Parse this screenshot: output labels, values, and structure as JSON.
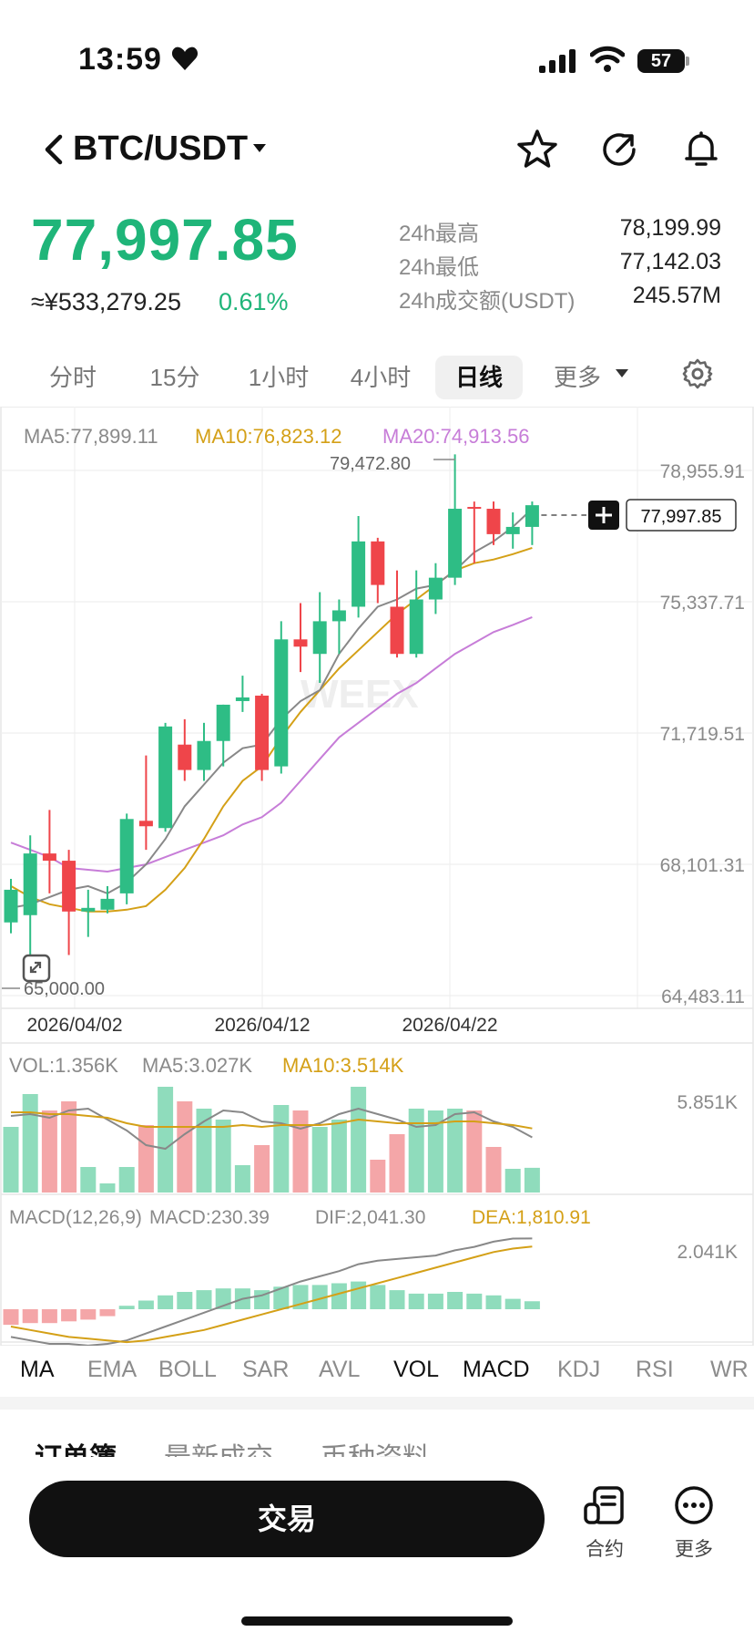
{
  "status_bar": {
    "time": "13:59",
    "battery": "57"
  },
  "header": {
    "pair": "BTC/USDT"
  },
  "price": {
    "last": "77,997.85",
    "cny": "≈¥533,279.25",
    "change": "0.61%",
    "stats": [
      {
        "label": "24h最高",
        "value": "78,199.99"
      },
      {
        "label": "24h最低",
        "value": "77,142.03"
      },
      {
        "label": "24h成交额(USDT)",
        "value": "245.57M"
      }
    ]
  },
  "timeframes": [
    "分时",
    "15分",
    "1小时",
    "4小时",
    "日线",
    "更多"
  ],
  "active_timeframe": "日线",
  "chart": {
    "ma5_label": "MA5:77,899.11",
    "ma10_label": "MA10:76,823.12",
    "ma20_label": "MA20:74,913.56",
    "high_marker": "79,472.80",
    "low_marker": "65,000.00",
    "last_tag": "77,997.85",
    "watermark": "WEEX",
    "vol_label": "VOL:1.356K",
    "vol_ma5_label": "MA5:3.027K",
    "vol_ma10_label": "MA10:3.514K",
    "vol_axis": "5.851K",
    "macd_params": "MACD(12,26,9)",
    "macd_label": "MACD:230.39",
    "dif_label": "DIF:2,041.30",
    "dea_label": "DEA:1,810.91",
    "macd_axis": "2.041K"
  },
  "chart_data": {
    "type": "candlestick",
    "x_labels": [
      "2026/04/02",
      "2026/04/12",
      "2026/04/22"
    ],
    "y_ticks": [
      "78,955.91",
      "75,337.71",
      "71,719.51",
      "68,101.31",
      "64,483.11"
    ],
    "ylim": [
      64483.11,
      78955.91
    ],
    "colors": {
      "up": "#2ebd85",
      "down": "#ef454a",
      "ma5": "#888888",
      "ma10": "#d4a017",
      "ma20": "#c77dd8"
    },
    "candles": [
      {
        "o": 66500,
        "h": 67700,
        "l": 66200,
        "c": 67400
      },
      {
        "o": 66700,
        "h": 68900,
        "l": 65600,
        "c": 68400
      },
      {
        "o": 68400,
        "h": 69600,
        "l": 67300,
        "c": 68200
      },
      {
        "o": 68200,
        "h": 68500,
        "l": 65600,
        "c": 66800
      },
      {
        "o": 66800,
        "h": 67400,
        "l": 66100,
        "c": 66900
      },
      {
        "o": 66850,
        "h": 67500,
        "l": 66750,
        "c": 67150
      },
      {
        "o": 67300,
        "h": 69500,
        "l": 67000,
        "c": 69350
      },
      {
        "o": 69300,
        "h": 71100,
        "l": 68500,
        "c": 69150
      },
      {
        "o": 69100,
        "h": 72000,
        "l": 69000,
        "c": 71900
      },
      {
        "o": 71400,
        "h": 72100,
        "l": 70400,
        "c": 70700
      },
      {
        "o": 70700,
        "h": 72000,
        "l": 70400,
        "c": 71500
      },
      {
        "o": 71500,
        "h": 72500,
        "l": 70800,
        "c": 72500
      },
      {
        "o": 72600,
        "h": 73300,
        "l": 72300,
        "c": 72700
      },
      {
        "o": 72750,
        "h": 72800,
        "l": 70400,
        "c": 70700
      },
      {
        "o": 70800,
        "h": 74800,
        "l": 70600,
        "c": 74300
      },
      {
        "o": 74300,
        "h": 75300,
        "l": 73400,
        "c": 74100
      },
      {
        "o": 73900,
        "h": 75600,
        "l": 73100,
        "c": 74800
      },
      {
        "o": 74800,
        "h": 75400,
        "l": 73900,
        "c": 75100
      },
      {
        "o": 75200,
        "h": 77700,
        "l": 74900,
        "c": 77000
      },
      {
        "o": 77000,
        "h": 77100,
        "l": 75300,
        "c": 75800
      },
      {
        "o": 75200,
        "h": 76200,
        "l": 73800,
        "c": 73900
      },
      {
        "o": 73900,
        "h": 76200,
        "l": 73800,
        "c": 75400
      },
      {
        "o": 75400,
        "h": 76400,
        "l": 75000,
        "c": 76000
      },
      {
        "o": 76000,
        "h": 79400,
        "l": 75800,
        "c": 77900
      },
      {
        "o": 77950,
        "h": 78100,
        "l": 76400,
        "c": 77900
      },
      {
        "o": 77900,
        "h": 78100,
        "l": 76900,
        "c": 77200
      },
      {
        "o": 77200,
        "h": 77800,
        "l": 76800,
        "c": 77400
      },
      {
        "o": 77400,
        "h": 78100,
        "l": 76900,
        "c": 77997.85
      }
    ],
    "ma5": [
      66900,
      67000,
      67200,
      67400,
      67500,
      67300,
      67600,
      68100,
      68800,
      69700,
      70300,
      70900,
      71300,
      71400,
      72100,
      72600,
      72900,
      73900,
      74600,
      75200,
      75400,
      75700,
      75800,
      76200,
      76700,
      77000,
      77400,
      77899.11
    ],
    "ma10": [
      67500,
      67200,
      67000,
      66900,
      66800,
      66800,
      66850,
      66950,
      67400,
      68000,
      68800,
      69700,
      70400,
      70800,
      71600,
      72300,
      72900,
      73500,
      74000,
      74500,
      75000,
      75400,
      75800,
      76200,
      76400,
      76500,
      76650,
      76823.12
    ],
    "ma20": [
      68700,
      68500,
      68300,
      68000,
      67950,
      67900,
      68000,
      68100,
      68300,
      68500,
      68700,
      68900,
      69200,
      69400,
      69800,
      70400,
      71000,
      71600,
      72000,
      72400,
      72800,
      73100,
      73500,
      73900,
      74200,
      74500,
      74700,
      74913.56
    ],
    "volume": [
      3.6,
      5.4,
      4.5,
      5.0,
      1.4,
      0.5,
      1.4,
      3.7,
      5.8,
      5.0,
      4.6,
      4.0,
      1.5,
      2.6,
      4.8,
      4.5,
      3.6,
      4.0,
      5.8,
      1.8,
      3.2,
      4.6,
      4.5,
      4.6,
      4.5,
      2.5,
      1.3,
      1.356
    ],
    "vol_ma5": [
      4.2,
      4.3,
      4.1,
      4.5,
      4.6,
      4.0,
      3.4,
      2.6,
      2.4,
      3.2,
      3.9,
      4.5,
      4.4,
      3.9,
      3.8,
      3.5,
      3.8,
      4.3,
      4.6,
      4.3,
      4.0,
      3.6,
      3.7,
      4.3,
      4.4,
      3.9,
      3.6,
      3.027
    ],
    "vol_ma10": [
      4.4,
      4.4,
      4.3,
      4.3,
      4.2,
      4.1,
      3.8,
      3.6,
      3.6,
      3.6,
      3.6,
      3.6,
      3.7,
      3.6,
      3.7,
      3.7,
      3.7,
      3.8,
      4.0,
      3.9,
      3.8,
      3.8,
      3.8,
      3.9,
      3.9,
      3.8,
      3.7,
      3.514
    ],
    "macd_hist": [
      -0.45,
      -0.4,
      -0.4,
      -0.35,
      -0.3,
      -0.2,
      0.1,
      0.25,
      0.4,
      0.5,
      0.55,
      0.6,
      0.6,
      0.55,
      0.65,
      0.7,
      0.7,
      0.75,
      0.8,
      0.7,
      0.55,
      0.45,
      0.45,
      0.5,
      0.45,
      0.4,
      0.3,
      0.23
    ],
    "dif": [
      -0.8,
      -0.9,
      -1.0,
      -1.0,
      -1.05,
      -1.0,
      -0.9,
      -0.7,
      -0.5,
      -0.3,
      -0.1,
      0.1,
      0.3,
      0.4,
      0.6,
      0.8,
      0.95,
      1.1,
      1.3,
      1.4,
      1.45,
      1.5,
      1.55,
      1.7,
      1.8,
      1.95,
      2.04,
      2.0413
    ],
    "dea": [
      -0.5,
      -0.6,
      -0.7,
      -0.8,
      -0.85,
      -0.9,
      -0.95,
      -0.9,
      -0.8,
      -0.7,
      -0.6,
      -0.45,
      -0.3,
      -0.15,
      0.0,
      0.15,
      0.3,
      0.45,
      0.6,
      0.75,
      0.9,
      1.05,
      1.2,
      1.35,
      1.5,
      1.65,
      1.75,
      1.8109
    ]
  },
  "indicators": [
    "MA",
    "EMA",
    "BOLL",
    "SAR",
    "AVL",
    "VOL",
    "MACD",
    "KDJ",
    "RSI",
    "WR"
  ],
  "active_indicators": [
    "MA",
    "VOL",
    "MACD"
  ],
  "sub_tabs": [
    "订单簿",
    "最新成交",
    "币种资料"
  ],
  "bottom": {
    "trade": "交易",
    "contract": "合约",
    "more": "更多"
  }
}
